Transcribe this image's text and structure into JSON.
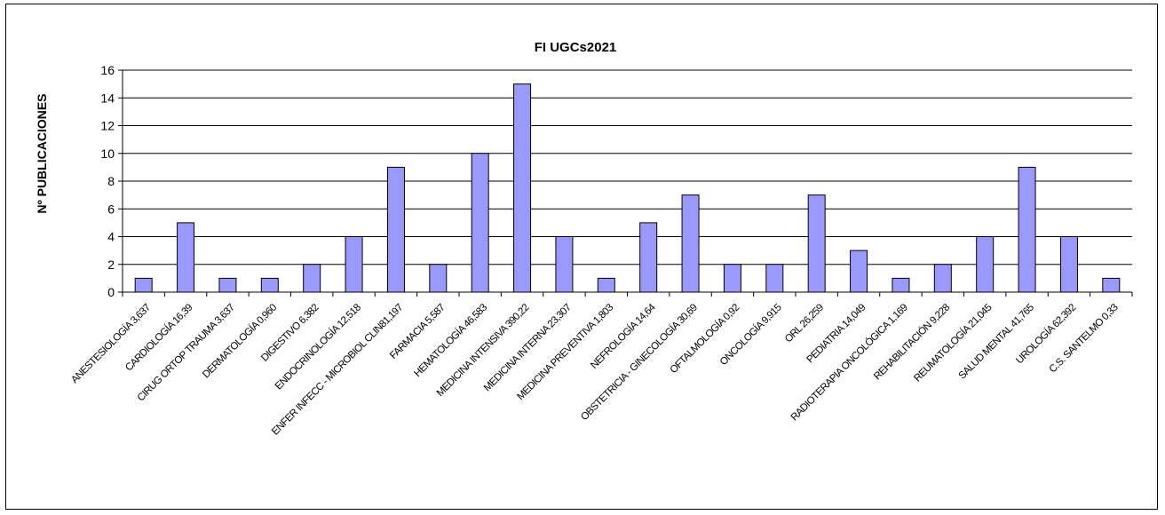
{
  "chart_data": {
    "type": "bar",
    "title": "FI UGCs2021",
    "xlabel": "",
    "ylabel": "Nº PUBLICACIONES",
    "ylim": [
      0,
      16
    ],
    "yticks": [
      0,
      2,
      4,
      6,
      8,
      10,
      12,
      14,
      16
    ],
    "grid": true,
    "legend": "none",
    "bar_color": "#9999ff",
    "categories": [
      "ANESTESIOLOGÍA 3,637",
      "CARDIOLOGÍA  16,39",
      "CIRUG ORTOP TRAUMA 3,637",
      "DERMATOLOGÍA 0,960",
      "DIGESTIVO 6,382",
      "ENDOCRINOLOGÍA  12,518",
      "ENFER INFECC - MICROBIOL CLIN81,197",
      "FARMACIA 5,587",
      "HEMATOLOGÍA  46,583",
      "MEDICINA INTENSIVA  390,22",
      "MEDICINA INTERNA 23,307",
      "MEDICINA PREVENTIVA 1,803",
      "NEFROLOGÍA  14,64",
      "OBSTETRICIA - GINECOLOGÍA 30,69",
      "OFTALMOLOGÍA  0,92",
      "ONCOLOGÍA 9,915",
      "ORL  26,259",
      "PEDIATRIA  14,049",
      "RADIOTERAPIA ONCOLÓGICA 1,169",
      "REHABILITACIÓN 9,228",
      "REUMATOLOGÍA 21,045",
      "SALUD MENTAL  41,765",
      "UROLOGÍA 62,392",
      "C.S. SANTELMO 0,33"
    ],
    "values": [
      1,
      5,
      1,
      1,
      2,
      4,
      9,
      2,
      10,
      15,
      4,
      1,
      5,
      7,
      2,
      2,
      7,
      3,
      1,
      2,
      4,
      9,
      4,
      1
    ]
  }
}
